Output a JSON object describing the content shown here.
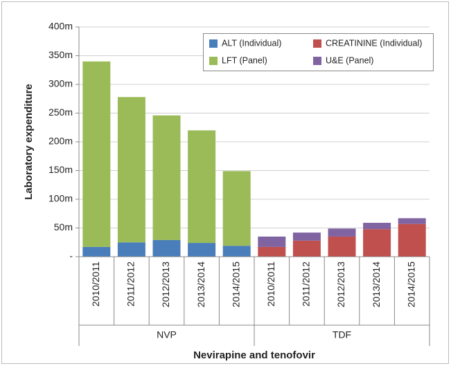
{
  "chart_data": {
    "type": "stacked_bar",
    "y_axis_label": "Laboratory expenditure",
    "x_axis_label": "Nevirapine and tenofovir",
    "groups": [
      {
        "label": "NVP",
        "categories": [
          "2010/2011",
          "2011/2012",
          "2012/2013",
          "2013/2014",
          "2014/2015"
        ]
      },
      {
        "label": "TDF",
        "categories": [
          "2010/2011",
          "2011/2012",
          "2012/2013",
          "2013/2014",
          "2014/2015"
        ]
      }
    ],
    "series": [
      {
        "name": "ALT (Individual)",
        "color": "#4a7ebb",
        "values": [
          17,
          25,
          29,
          24,
          19,
          0,
          0,
          0,
          0,
          0
        ]
      },
      {
        "name": "CREATININE (Individual)",
        "color": "#c0504d",
        "values": [
          0,
          0,
          0,
          0,
          0,
          17,
          28,
          35,
          48,
          57
        ]
      },
      {
        "name": "LFT (Panel)",
        "color": "#9bbb59",
        "values": [
          323,
          253,
          217,
          196,
          130,
          0,
          0,
          0,
          0,
          0
        ]
      },
      {
        "name": "U&E (Panel)",
        "color": "#8064a2",
        "values": [
          0,
          0,
          0,
          0,
          0,
          18,
          14,
          14,
          11,
          10
        ]
      }
    ],
    "ylim": [
      0,
      400
    ],
    "yticks": [
      {
        "value": 0,
        "label": "-"
      },
      {
        "value": 50,
        "label": "50m"
      },
      {
        "value": 100,
        "label": "100m"
      },
      {
        "value": 150,
        "label": "150m"
      },
      {
        "value": 200,
        "label": "200m"
      },
      {
        "value": 250,
        "label": "250m"
      },
      {
        "value": 300,
        "label": "300m"
      },
      {
        "value": 350,
        "label": "350m"
      },
      {
        "value": 400,
        "label": "400m"
      }
    ],
    "grid": true
  }
}
